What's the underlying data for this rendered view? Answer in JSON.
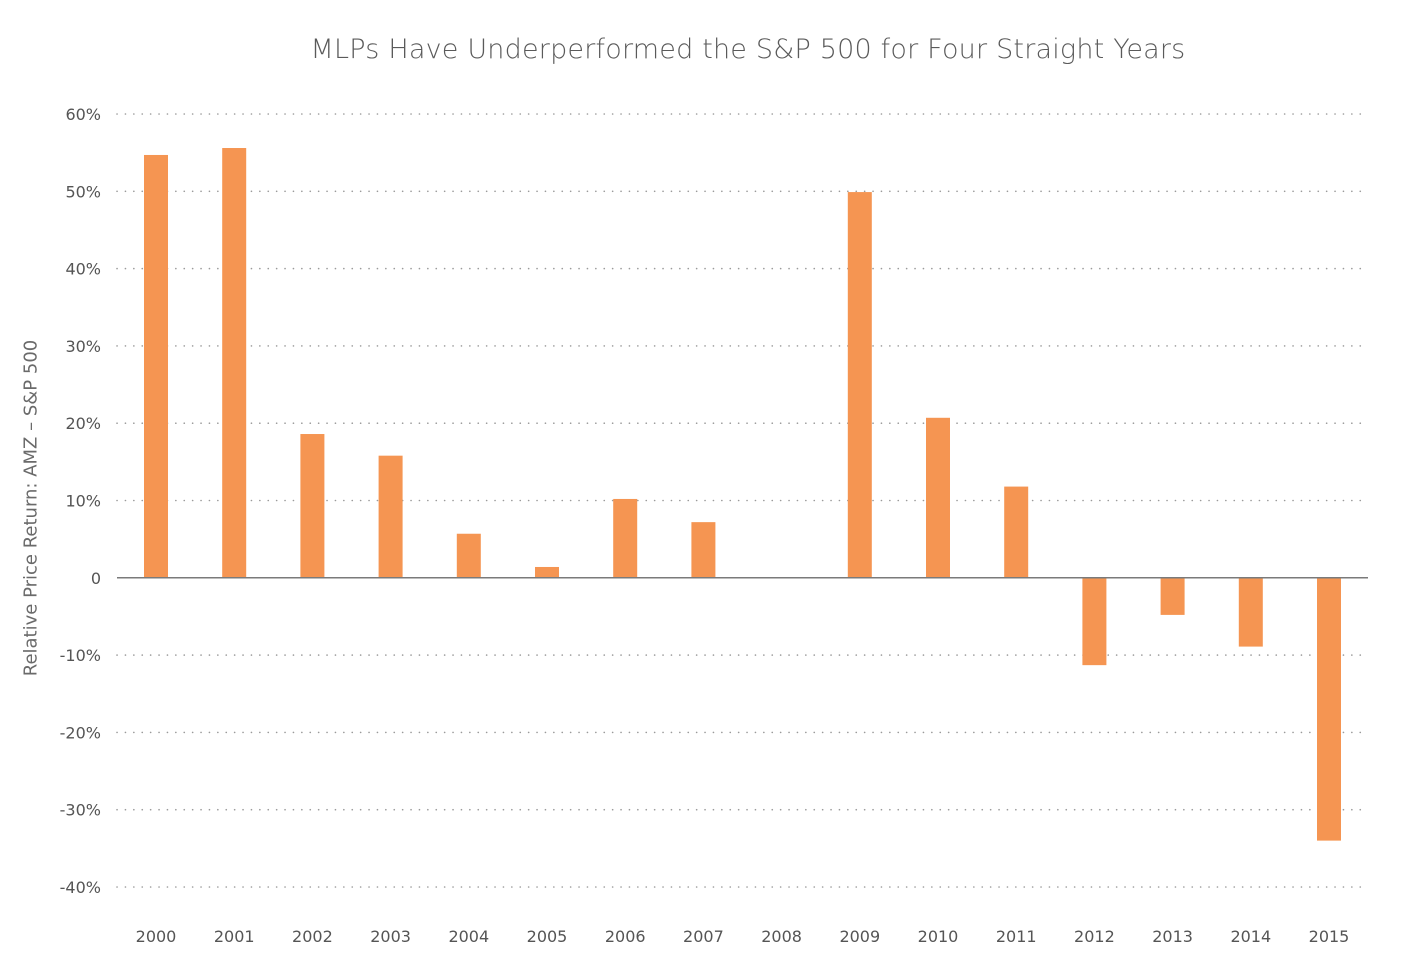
{
  "chart_data": {
    "type": "bar",
    "title": "MLPs Have Underperformed the S&P 500 for Four Straight Years",
    "xlabel": "",
    "ylabel": "Relative Price Return: AMZ – S&P 500",
    "categories": [
      "2000",
      "2001",
      "2002",
      "2003",
      "2004",
      "2005",
      "2006",
      "2007",
      "2008",
      "2009",
      "2010",
      "2011",
      "2012",
      "2013",
      "2014",
      "2015"
    ],
    "values": [
      54.7,
      55.6,
      18.6,
      15.8,
      5.7,
      1.4,
      10.2,
      7.2,
      0.1,
      49.9,
      20.7,
      11.8,
      -11.3,
      -4.8,
      -8.9,
      -34.0
    ],
    "value_unit": "%",
    "ylim": [
      -40,
      60
    ],
    "yticks": [
      60,
      50,
      40,
      30,
      20,
      10,
      0,
      -10,
      -20,
      -30,
      -40
    ],
    "ytick_labels": [
      "60%",
      "50%",
      "40%",
      "30%",
      "20%",
      "10%",
      "0",
      "-10%",
      "-20%",
      "-30%",
      "-40%"
    ],
    "grid": "horizontal-dotted",
    "legend": "none",
    "bar_color": "#f59552",
    "grid_color": "#9a9a9a",
    "zero_line_color": "#7a7a7a"
  }
}
